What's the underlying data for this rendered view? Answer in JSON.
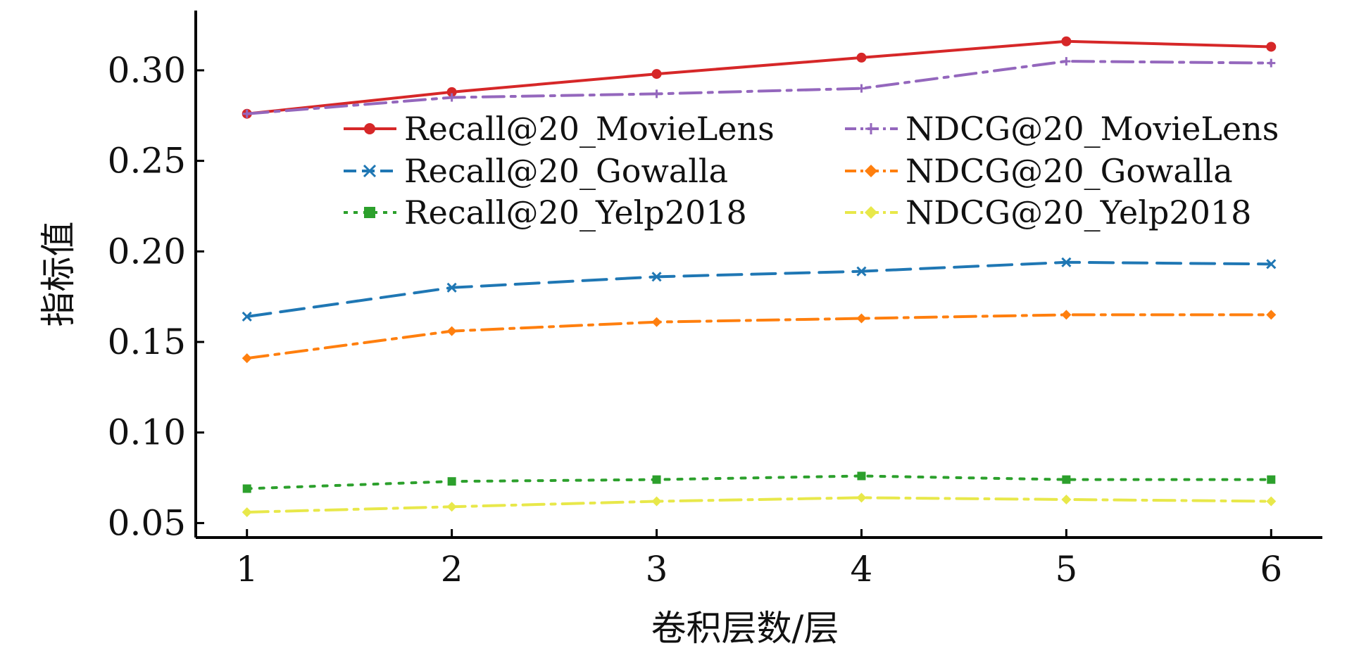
{
  "chart_data": {
    "type": "line",
    "title": "",
    "xlabel": "卷积层数/层",
    "ylabel": "指标值",
    "x": [
      1,
      2,
      3,
      4,
      5,
      6
    ],
    "xticks": [
      "1",
      "2",
      "3",
      "4",
      "5",
      "6"
    ],
    "xlim": [
      0.75,
      6.25
    ],
    "yticks": [
      "0.05",
      "0.10",
      "0.15",
      "0.20",
      "0.25",
      "0.30"
    ],
    "ylim": [
      0.042,
      0.333
    ],
    "grid": false,
    "legend_position": "upper-center",
    "series": [
      {
        "name": "Recall@20_MovieLens",
        "values": [
          0.276,
          0.288,
          0.298,
          0.307,
          0.316,
          0.313
        ],
        "color": "#d62728",
        "dash": "solid",
        "marker": "circle"
      },
      {
        "name": "NDCG@20_MovieLens",
        "values": [
          0.276,
          0.285,
          0.287,
          0.29,
          0.305,
          0.304
        ],
        "color": "#9467bd",
        "dash": "dashdot",
        "marker": "plus"
      },
      {
        "name": "Recall@20_Gowalla",
        "values": [
          0.164,
          0.18,
          0.186,
          0.189,
          0.194,
          0.193
        ],
        "color": "#1f77b4",
        "dash": "dashed",
        "marker": "x"
      },
      {
        "name": "NDCG@20_Gowalla",
        "values": [
          0.141,
          0.156,
          0.161,
          0.163,
          0.165,
          0.165
        ],
        "color": "#ff7f0e",
        "dash": "dashdot",
        "marker": "diamond"
      },
      {
        "name": "Recall@20_Yelp2018",
        "values": [
          0.069,
          0.073,
          0.074,
          0.076,
          0.074,
          0.074
        ],
        "color": "#2ca02c",
        "dash": "dotted",
        "marker": "square"
      },
      {
        "name": "NDCG@20_Yelp2018",
        "values": [
          0.056,
          0.059,
          0.062,
          0.064,
          0.063,
          0.062
        ],
        "color": "#e8e84a",
        "dash": "dashdot",
        "marker": "diamond"
      }
    ]
  }
}
